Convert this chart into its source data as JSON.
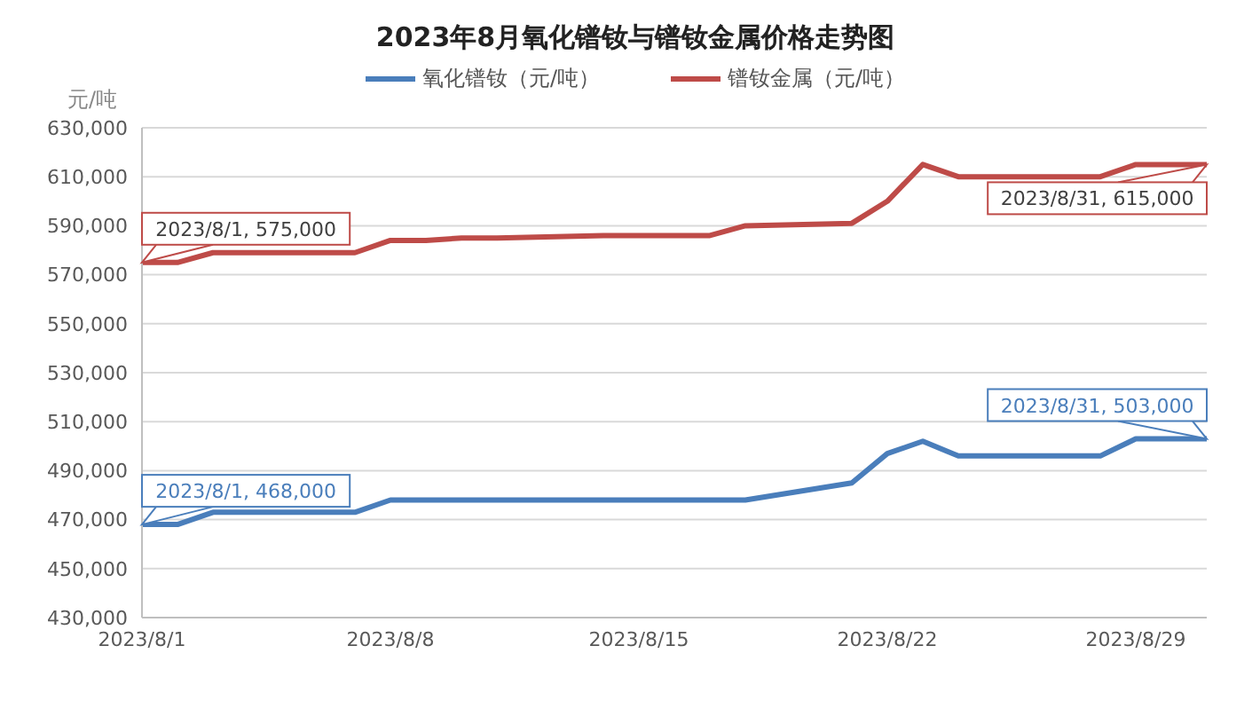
{
  "chart_data": {
    "type": "line",
    "title": "2023年8月氧化镨钕与镨钕金属价格走势图",
    "ylabel": "元/吨",
    "x": [
      "2023-08-01",
      "2023-08-02",
      "2023-08-03",
      "2023-08-04",
      "2023-08-07",
      "2023-08-08",
      "2023-08-09",
      "2023-08-10",
      "2023-08-11",
      "2023-08-14",
      "2023-08-15",
      "2023-08-16",
      "2023-08-17",
      "2023-08-18",
      "2023-08-21",
      "2023-08-22",
      "2023-08-23",
      "2023-08-24",
      "2023-08-25",
      "2023-08-28",
      "2023-08-29",
      "2023-08-30",
      "2023-08-31"
    ],
    "series": [
      {
        "name": "氧化镨钕（元/吨）",
        "color": "#4a7ebb",
        "values": [
          468000,
          468000,
          473000,
          473000,
          473000,
          478000,
          478000,
          478000,
          478000,
          478000,
          478000,
          478000,
          478000,
          478000,
          485000,
          497000,
          502000,
          496000,
          496000,
          496000,
          503000,
          503000,
          503000
        ]
      },
      {
        "name": "镨钕金属（元/吨）",
        "color": "#be4b48",
        "values": [
          575000,
          575000,
          579000,
          579000,
          579000,
          584000,
          584000,
          585000,
          585000,
          586000,
          586000,
          586000,
          586000,
          590000,
          591000,
          600000,
          615000,
          610000,
          610000,
          610000,
          615000,
          615000,
          615000
        ]
      }
    ],
    "xlim": [
      "2023-08-01",
      "2023-08-31"
    ],
    "xticks": [
      {
        "value": "2023-08-01",
        "label": "2023/8/1"
      },
      {
        "value": "2023-08-08",
        "label": "2023/8/8"
      },
      {
        "value": "2023-08-15",
        "label": "2023/8/15"
      },
      {
        "value": "2023-08-22",
        "label": "2023/8/22"
      },
      {
        "value": "2023-08-29",
        "label": "2023/8/29"
      }
    ],
    "ylim": [
      430000,
      630000
    ],
    "yticks": [
      {
        "value": 430000,
        "label": "430,000"
      },
      {
        "value": 450000,
        "label": "450,000"
      },
      {
        "value": 470000,
        "label": "470,000"
      },
      {
        "value": 490000,
        "label": "490,000"
      },
      {
        "value": 510000,
        "label": "510,000"
      },
      {
        "value": 530000,
        "label": "530,000"
      },
      {
        "value": 550000,
        "label": "550,000"
      },
      {
        "value": 570000,
        "label": "570,000"
      },
      {
        "value": 590000,
        "label": "590,000"
      },
      {
        "value": 610000,
        "label": "610,000"
      },
      {
        "value": 630000,
        "label": "630,000"
      }
    ],
    "grid": "y",
    "legend": "top",
    "marker": "none",
    "line_style": "solid",
    "annotations": [
      {
        "text": "2023/8/1, 575,000",
        "x": "2023-08-01",
        "y": 575000
      },
      {
        "text": "2023/8/31, 615,000",
        "x": "2023-08-31",
        "y": 615000
      },
      {
        "text": "2023/8/1, 468,000",
        "x": "2023-08-01",
        "y": 468000
      },
      {
        "text": "2023/8/31, 503,000",
        "x": "2023-08-31",
        "y": 503000
      }
    ]
  }
}
